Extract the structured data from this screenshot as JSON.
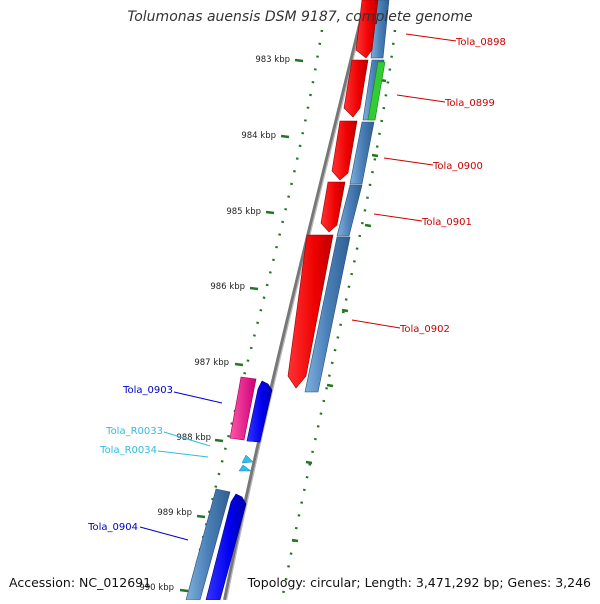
{
  "title": "Tolumonas auensis DSM 9187, complete genome",
  "footer": {
    "accession": "Accession: NC_012691",
    "stats": "Topology: circular; Length: 3,471,292 bp; Genes: 3,246"
  },
  "ruler": {
    "labels": [
      "983 kbp",
      "984 kbp",
      "985 kbp",
      "986 kbp",
      "987 kbp",
      "988 kbp",
      "989 kbp",
      "990 kbp"
    ]
  },
  "genes": [
    {
      "name": "Tola_0898",
      "color": "#cc0000"
    },
    {
      "name": "Tola_0899",
      "color": "#cc0000"
    },
    {
      "name": "Tola_0900",
      "color": "#cc0000"
    },
    {
      "name": "Tola_0901",
      "color": "#cc0000"
    },
    {
      "name": "Tola_0902",
      "color": "#cc0000"
    },
    {
      "name": "Tola_0903",
      "color": "#0000cc"
    },
    {
      "name": "Tola_R0033",
      "color": "#33bbdd"
    },
    {
      "name": "Tola_R0034",
      "color": "#33bbdd"
    },
    {
      "name": "Tola_0904",
      "color": "#0000cc"
    }
  ],
  "colors": {
    "backbone": "#888888",
    "cds_forward": "#ee0000",
    "cds_reverse": "#0000ee",
    "gene_bar": "#4a80b8",
    "pseudo_bar": "#33cc33",
    "trna_pink": "#ee1188",
    "rna": "#33bbee",
    "tick": "#227722"
  }
}
